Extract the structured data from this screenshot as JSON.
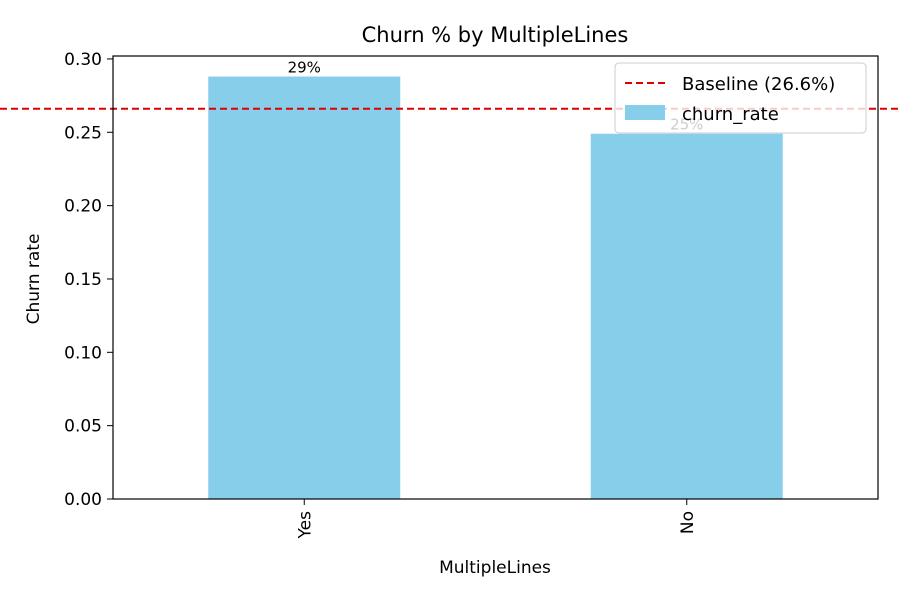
{
  "chart_data": {
    "type": "bar",
    "title": "Churn % by MultipleLines",
    "xlabel": "MultipleLines",
    "ylabel": "Churn rate",
    "categories": [
      "Yes",
      "No"
    ],
    "series": [
      {
        "name": "churn_rate",
        "values": [
          0.288,
          0.249
        ],
        "color": "#87CEEB"
      }
    ],
    "data_labels": [
      "29%",
      "25%"
    ],
    "ylim": [
      0,
      0.302
    ],
    "yticks": [
      0.0,
      0.05,
      0.1,
      0.15,
      0.2,
      0.25,
      0.3
    ],
    "ytick_labels": [
      "0.00",
      "0.05",
      "0.10",
      "0.15",
      "0.20",
      "0.25",
      "0.30"
    ],
    "baseline": {
      "value": 0.266,
      "label": "Baseline (26.6%)",
      "color": "#DD0000",
      "style": "dashed"
    },
    "legend": {
      "placement": "top-right",
      "entries": [
        "Baseline (26.6%)",
        "churn_rate"
      ]
    },
    "grid": false
  }
}
